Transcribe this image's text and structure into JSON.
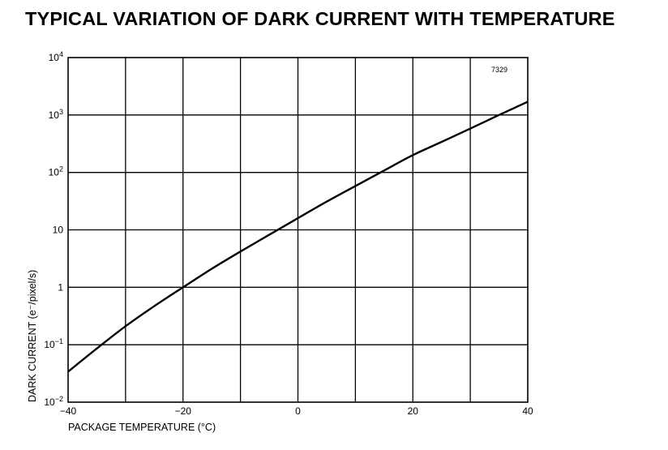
{
  "title": "TYPICAL VARIATION OF DARK CURRENT WITH TEMPERATURE",
  "chart_data": {
    "type": "line",
    "xlabel": "PACKAGE TEMPERATURE (°C)",
    "ylabel": "DARK CURRENT (e⁻/pixel/s)",
    "xlim": [
      -40,
      40
    ],
    "ylim": [
      0.01,
      10000
    ],
    "y_scale": "log",
    "x_ticks": [
      -40,
      -30,
      -20,
      -10,
      0,
      10,
      20,
      30,
      40
    ],
    "x_tick_labels": [
      "−40",
      "",
      "−20",
      "",
      "0",
      "",
      "20",
      "",
      "40"
    ],
    "y_ticks": [
      0.01,
      0.1,
      1,
      10,
      100,
      1000,
      10000
    ],
    "y_tick_labels": [
      {
        "base": "10",
        "exp": "−2"
      },
      {
        "base": "10",
        "exp": "−1"
      },
      {
        "base": "1",
        "exp": ""
      },
      {
        "base": "10",
        "exp": ""
      },
      {
        "base": "10",
        "exp": "2"
      },
      {
        "base": "10",
        "exp": "3"
      },
      {
        "base": "10",
        "exp": "4"
      }
    ],
    "grid": true,
    "annotation": "7329",
    "series": [
      {
        "x": [
          -40,
          -35,
          -30,
          -25,
          -20,
          -15,
          -10,
          -5,
          0,
          5,
          10,
          15,
          20,
          25,
          30,
          35,
          40
        ],
        "y": [
          0.034,
          0.086,
          0.21,
          0.47,
          1.0,
          2.1,
          4.2,
          8.2,
          16,
          31,
          58,
          108,
          200,
          340,
          580,
          1000,
          1700
        ]
      }
    ]
  }
}
